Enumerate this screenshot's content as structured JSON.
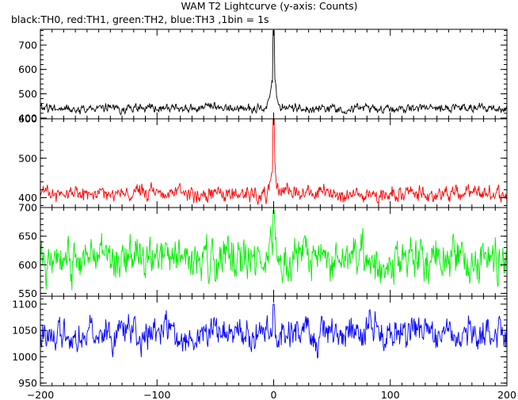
{
  "title": "WAM T2 Lightcurve (y-axis: Counts)",
  "subtitle": "black:TH0, red:TH1, green:TH2, blue:TH3 ,1bin = 1s",
  "chart_data": {
    "type": "line",
    "title": "WAM T2 Lightcurve (y-axis: Counts)",
    "subtitle": "black:TH0, red:TH1, green:TH2, blue:TH3 ,1bin = 1s",
    "xlabel": "",
    "ylabel": "",
    "xlim": [
      -200,
      200
    ],
    "x_ticks": [
      -200,
      -100,
      0,
      100,
      200
    ],
    "x_tick_labels": [
      "−200",
      "−100",
      "0",
      "100",
      "200"
    ],
    "grid": false,
    "panels": [
      {
        "name": "TH0",
        "color": "#000000",
        "ylim": [
          397,
          765
        ],
        "y_ticks": [
          400,
          500,
          600,
          700
        ],
        "y_tick_labels": [
          "400",
          "500",
          "600",
          "700"
        ],
        "baseline": 440,
        "noise_amplitude": 18,
        "peak_x": 0,
        "peak_y": 760,
        "shoulder_y": 600,
        "key_points": [
          {
            "x": -200,
            "y": 440
          },
          {
            "x": -100,
            "y": 440
          },
          {
            "x": -5,
            "y": 470
          },
          {
            "x": -2,
            "y": 580
          },
          {
            "x": 0,
            "y": 760
          },
          {
            "x": 2,
            "y": 560
          },
          {
            "x": 5,
            "y": 470
          },
          {
            "x": 100,
            "y": 440
          },
          {
            "x": 165,
            "y": 480
          },
          {
            "x": 200,
            "y": 435
          }
        ]
      },
      {
        "name": "TH1",
        "color": "#ff0000",
        "ylim": [
          375,
          600
        ],
        "y_ticks": [
          400,
          500,
          600
        ],
        "y_tick_labels": [
          "400",
          "500",
          "600"
        ],
        "baseline": 410,
        "noise_amplitude": 20,
        "peak_x": 0,
        "peak_y": 600,
        "shoulder_y": 510,
        "key_points": [
          {
            "x": -200,
            "y": 410
          },
          {
            "x": -100,
            "y": 410
          },
          {
            "x": -5,
            "y": 440
          },
          {
            "x": -2,
            "y": 510
          },
          {
            "x": 0,
            "y": 600
          },
          {
            "x": 2,
            "y": 500
          },
          {
            "x": 5,
            "y": 440
          },
          {
            "x": 100,
            "y": 410
          },
          {
            "x": 200,
            "y": 410
          }
        ]
      },
      {
        "name": "TH2",
        "color": "#00ee00",
        "ylim": [
          545,
          700
        ],
        "y_ticks": [
          550,
          600,
          650,
          700
        ],
        "y_tick_labels": [
          "550",
          "600",
          "650",
          "700"
        ],
        "baseline": 610,
        "noise_amplitude": 35,
        "peak_x": 0,
        "peak_y": 695,
        "shoulder_y": 650,
        "key_points": [
          {
            "x": -200,
            "y": 610
          },
          {
            "x": -100,
            "y": 610
          },
          {
            "x": 0,
            "y": 695
          },
          {
            "x": 100,
            "y": 610
          },
          {
            "x": 200,
            "y": 610
          }
        ]
      },
      {
        "name": "TH3",
        "color": "#0000ff",
        "ylim": [
          945,
          1115
        ],
        "y_ticks": [
          950,
          1000,
          1050,
          1100
        ],
        "y_tick_labels": [
          "950",
          "1000",
          "1050",
          "1100"
        ],
        "baseline": 1045,
        "noise_amplitude": 30,
        "peak_x": 0,
        "peak_y": 1100,
        "shoulder_y": 1060,
        "key_points": [
          {
            "x": -200,
            "y": 1045
          },
          {
            "x": -100,
            "y": 1045
          },
          {
            "x": 0,
            "y": 1100
          },
          {
            "x": 100,
            "y": 1045
          },
          {
            "x": 200,
            "y": 1045
          }
        ]
      }
    ]
  }
}
